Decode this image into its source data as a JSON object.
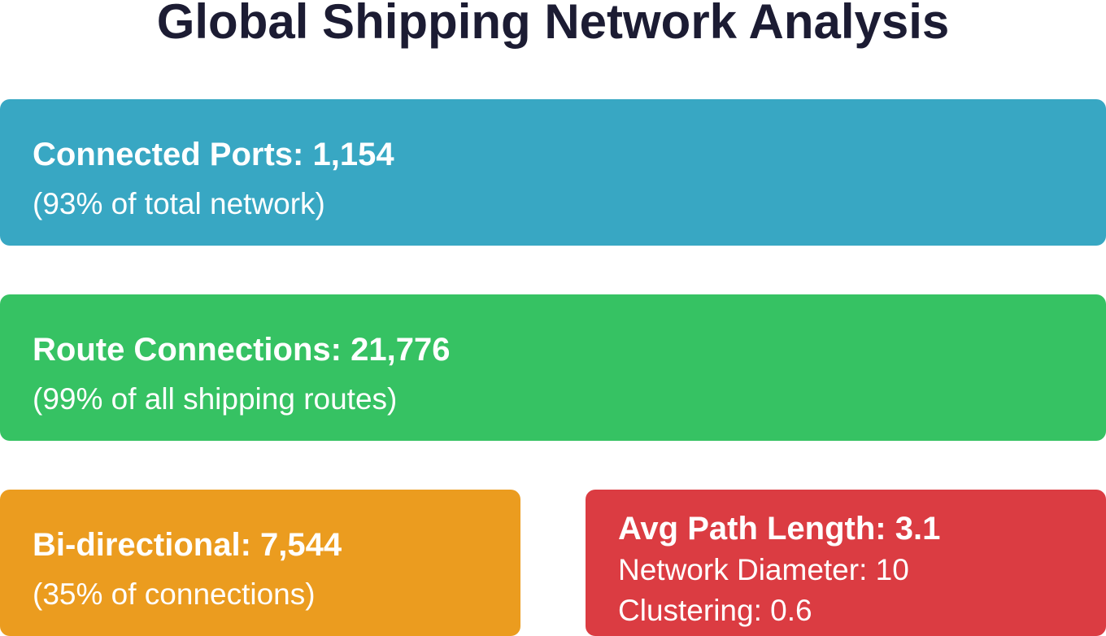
{
  "title": "Global Shipping Network Analysis",
  "cards": [
    {
      "heading": "Connected Ports: 1,154",
      "lines": [
        "(93% of total network)"
      ]
    },
    {
      "heading": "Route Connections: 21,776",
      "lines": [
        "(99% of all shipping routes)"
      ]
    },
    {
      "heading": "Bi-directional: 7,544",
      "lines": [
        "(35% of connections)"
      ]
    },
    {
      "heading": "Avg Path Length: 3.1",
      "lines": [
        "Network Diameter: 10",
        "Clustering: 0.6"
      ]
    }
  ]
}
